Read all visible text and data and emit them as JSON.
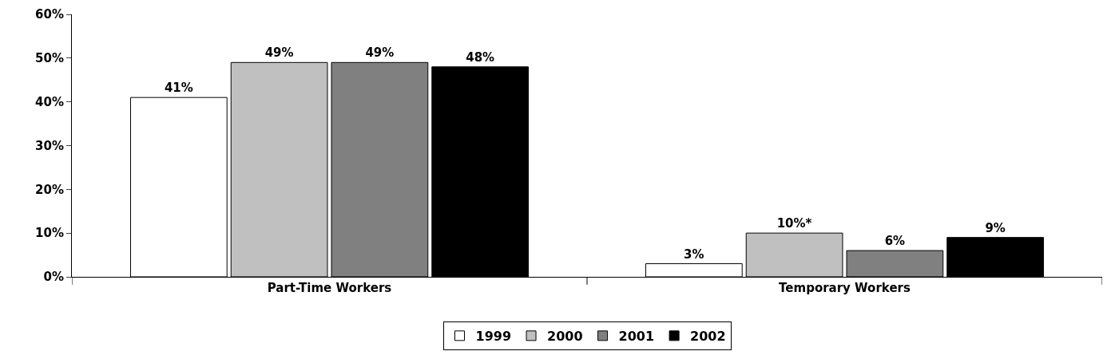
{
  "chart_data": {
    "type": "bar",
    "categories": [
      "Part-Time Workers",
      "Temporary Workers"
    ],
    "series": [
      {
        "name": "1999",
        "color": "#ffffff",
        "values": [
          41,
          3
        ],
        "value_labels": [
          "41%",
          "3%"
        ]
      },
      {
        "name": "2000",
        "color": "#c0c0c0",
        "values": [
          49,
          10
        ],
        "value_labels": [
          "49%",
          "10%*"
        ]
      },
      {
        "name": "2001",
        "color": "#808080",
        "values": [
          49,
          6
        ],
        "value_labels": [
          "49%",
          "6%"
        ]
      },
      {
        "name": "2002",
        "color": "#000000",
        "values": [
          48,
          9
        ],
        "value_labels": [
          "48%",
          "9%"
        ]
      }
    ],
    "ylim": [
      0,
      60
    ],
    "yticks": [
      {
        "value": 0,
        "label": "0%"
      },
      {
        "value": 10,
        "label": "10%"
      },
      {
        "value": 20,
        "label": "20%"
      },
      {
        "value": 30,
        "label": "30%"
      },
      {
        "value": 40,
        "label": "40%"
      },
      {
        "value": 50,
        "label": "50%"
      },
      {
        "value": 60,
        "label": "60%"
      }
    ],
    "legend": "bottom"
  }
}
